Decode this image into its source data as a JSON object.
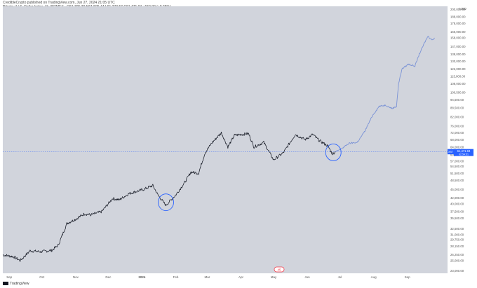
{
  "header": {
    "title": "CredibleCrypto published on TradingView.com, Jun 27, 2024 21:05 UTC",
    "symbol": "Bitcoin / U.S. Dollar Index, 4h, BITMEX",
    "ohlc": "O61,305.30 H61,505.44 L61,273.57 C61,471.94 +150.90 (+0.25%)"
  },
  "footer": {
    "brand": "TradingView"
  },
  "price_tag": {
    "symbol": "XBT",
    "price": "61,471.94",
    "countdown": "02:54:51"
  },
  "events_badge": "45",
  "colors": {
    "plot_bg": "#d1d4dc",
    "candle": "#131722",
    "projection": "#7b93d6",
    "circle": "#2962ff",
    "price_line": "#2962ff",
    "badge": "#f23645"
  },
  "chart_data": {
    "type": "line",
    "title": "",
    "currency": "USD",
    "y_axis": {
      "ticks": [
        "23,000.00",
        "25,000.00",
        "26,250.00",
        "28,150.00",
        "29,750.00",
        "31,000.00",
        "32,500.00",
        "35,500.00",
        "37,500.00",
        "40,000.00",
        "42,000.00",
        "45,000.00",
        "48,500.00",
        "51,500.00",
        "54,500.00",
        "57,000.00",
        "60,000.00",
        "64,000.00",
        "68,000.00",
        "72,000.00",
        "76,000.00",
        "82,000.00",
        "88,500.00",
        "94,500.00",
        "100,500.00",
        "108,000.00",
        "115,000.00",
        "122,000.00",
        "130,000.00",
        "138,000.00",
        "147,000.00",
        "158,000.00",
        "166,000.00",
        "178,000.00",
        "188,000.00",
        "200,000.00"
      ],
      "range": [
        22500,
        205000
      ],
      "scale": "log"
    },
    "x_axis": {
      "ticks": [
        "Sep",
        "Oct",
        "Nov",
        "Dec",
        "2024",
        "Feb",
        "Mar",
        "Apr",
        "May",
        "Jun",
        "Jul",
        "Aug",
        "Sep"
      ],
      "range": [
        "2023-08-26",
        "2024-10-08"
      ]
    },
    "series": [
      {
        "kind": "price",
        "points": [
          [
            "2023-08-26",
            26200
          ],
          [
            "2023-09-05",
            25800
          ],
          [
            "2023-09-11",
            25000
          ],
          [
            "2023-09-20",
            27100
          ],
          [
            "2023-09-30",
            26900
          ],
          [
            "2023-10-10",
            27200
          ],
          [
            "2023-10-16",
            28400
          ],
          [
            "2023-10-24",
            34000
          ],
          [
            "2023-11-01",
            35200
          ],
          [
            "2023-11-09",
            36800
          ],
          [
            "2023-11-15",
            36500
          ],
          [
            "2023-11-25",
            37500
          ],
          [
            "2023-12-05",
            41800
          ],
          [
            "2023-12-11",
            41300
          ],
          [
            "2023-12-20",
            43500
          ],
          [
            "2024-01-02",
            45000
          ],
          [
            "2024-01-11",
            46500
          ],
          [
            "2024-01-16",
            42800
          ],
          [
            "2024-01-23",
            39500
          ],
          [
            "2024-02-01",
            43000
          ],
          [
            "2024-02-09",
            47500
          ],
          [
            "2024-02-15",
            52000
          ],
          [
            "2024-02-22",
            51500
          ],
          [
            "2024-02-28",
            61000
          ],
          [
            "2024-03-05",
            66000
          ],
          [
            "2024-03-14",
            72000
          ],
          [
            "2024-03-20",
            64000
          ],
          [
            "2024-03-26",
            70500
          ],
          [
            "2024-04-08",
            71500
          ],
          [
            "2024-04-13",
            64000
          ],
          [
            "2024-04-22",
            66500
          ],
          [
            "2024-05-01",
            57500
          ],
          [
            "2024-05-10",
            61000
          ],
          [
            "2024-05-21",
            71000
          ],
          [
            "2024-05-30",
            68000
          ],
          [
            "2024-06-06",
            71000
          ],
          [
            "2024-06-12",
            67500
          ],
          [
            "2024-06-20",
            64500
          ],
          [
            "2024-06-24",
            60500
          ],
          [
            "2024-06-27",
            61471
          ]
        ]
      },
      {
        "kind": "projection",
        "points": [
          [
            "2024-06-27",
            61471
          ],
          [
            "2024-07-05",
            64000
          ],
          [
            "2024-07-08",
            65500
          ],
          [
            "2024-07-10",
            66000
          ],
          [
            "2024-07-17",
            66500
          ],
          [
            "2024-07-24",
            73000
          ],
          [
            "2024-07-31",
            83000
          ],
          [
            "2024-08-06",
            89500
          ],
          [
            "2024-08-12",
            90500
          ],
          [
            "2024-08-18",
            88000
          ],
          [
            "2024-08-22",
            89500
          ],
          [
            "2024-08-24",
            108000
          ],
          [
            "2024-08-27",
            122000
          ],
          [
            "2024-09-02",
            127000
          ],
          [
            "2024-09-08",
            125000
          ],
          [
            "2024-09-12",
            138000
          ],
          [
            "2024-09-17",
            152000
          ],
          [
            "2024-09-20",
            160000
          ],
          [
            "2024-09-24",
            155000
          ],
          [
            "2024-09-26",
            158000
          ]
        ]
      }
    ],
    "annotations": [
      {
        "type": "circle",
        "date": "2024-01-23",
        "price": 40500
      },
      {
        "type": "circle",
        "date": "2024-06-25",
        "price": 61200
      }
    ],
    "grid": false
  }
}
